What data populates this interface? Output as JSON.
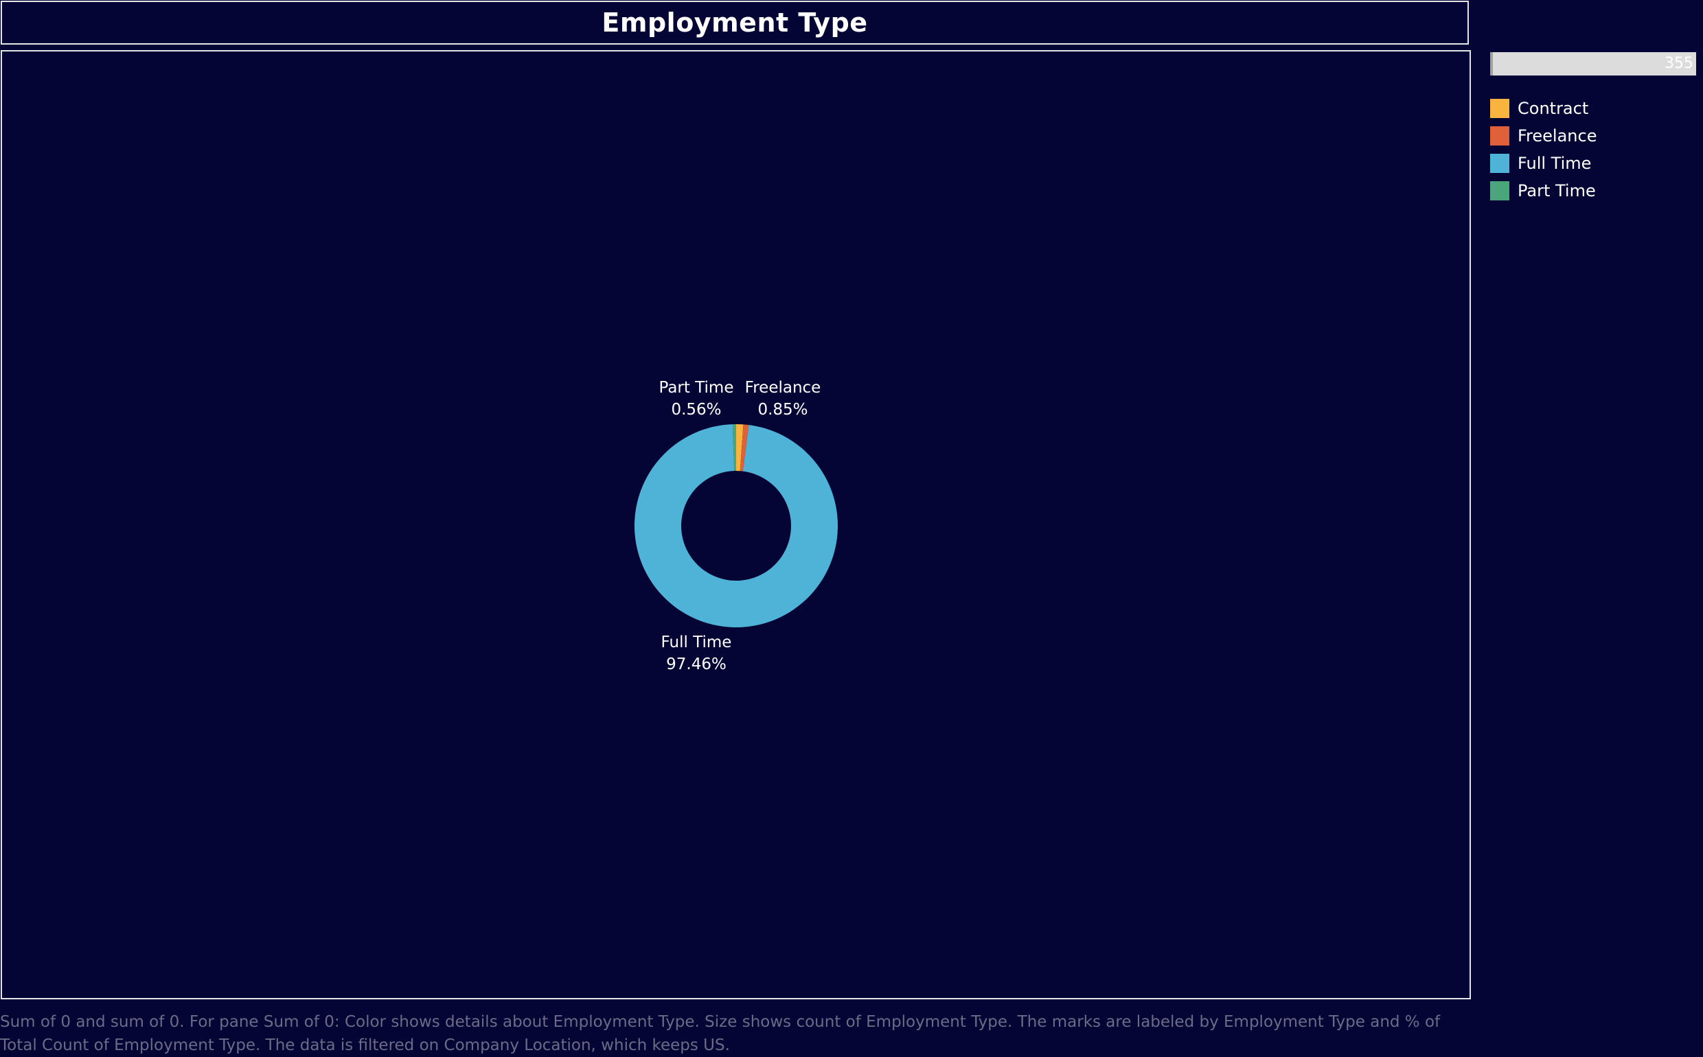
{
  "title": "Employment Type",
  "size_legend": {
    "value": "355"
  },
  "legend": {
    "items": [
      {
        "label": "Contract",
        "color": "#f9b440"
      },
      {
        "label": "Freelance",
        "color": "#e0603a"
      },
      {
        "label": "Full Time",
        "color": "#4fb3d8"
      },
      {
        "label": "Part Time",
        "color": "#4aa57a"
      }
    ]
  },
  "caption": "Sum of 0 and sum of 0.  For pane Sum of 0:  Color shows details about Employment Type.  Size shows count of Employment Type.  The marks are labeled by Employment Type and % of Total Count of Employment Type. The data is filtered on Company Location, which keeps US.",
  "chart_data": {
    "type": "pie",
    "title": "Employment Type",
    "donut": true,
    "slices": [
      {
        "name": "Full Time",
        "percent": 97.46,
        "color": "#4fb3d8",
        "label": [
          "Full Time",
          "97.46%"
        ]
      },
      {
        "name": "Part Time",
        "percent": 0.56,
        "color": "#4aa57a",
        "label": [
          "Part Time",
          "0.56%"
        ]
      },
      {
        "name": "Contract",
        "percent": 1.13,
        "color": "#f9b440",
        "label": null
      },
      {
        "name": "Freelance",
        "percent": 0.85,
        "color": "#e0603a",
        "label": [
          "Freelance",
          "0.85%"
        ]
      }
    ]
  }
}
